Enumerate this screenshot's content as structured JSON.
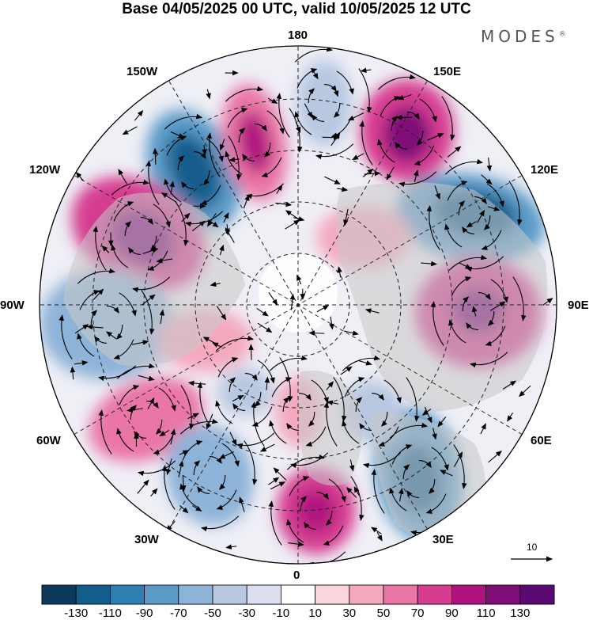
{
  "title": "Base 04/05/2025 00 UTC, valid 10/05/2025 12 UTC",
  "brand": {
    "name": "MODES",
    "mark": "®"
  },
  "longitude_labels": {
    "n180": "180",
    "e150": "150E",
    "e120": "120E",
    "e90": "90E",
    "e60": "60E",
    "e30": "30E",
    "zero": "0",
    "w30": "30W",
    "w60": "60W",
    "w90": "90W",
    "w120": "120W",
    "w150": "150W"
  },
  "colorbar": {
    "colors": [
      "#0c3a5a",
      "#135d8c",
      "#2f7fb5",
      "#5c9bc8",
      "#8eb3d8",
      "#b8c8e1",
      "#dcdff0",
      "#ffffff",
      "#f9d6dc",
      "#f4a9bf",
      "#ea76a6",
      "#d63d91",
      "#b0137f",
      "#7f0d78",
      "#5a0a72"
    ],
    "labels": [
      "-130",
      "-110",
      "-90",
      "-70",
      "-50",
      "-30",
      "-10",
      "10",
      "30",
      "50",
      "70",
      "90",
      "110",
      "130"
    ]
  },
  "reference_vector": {
    "label": "10"
  }
}
